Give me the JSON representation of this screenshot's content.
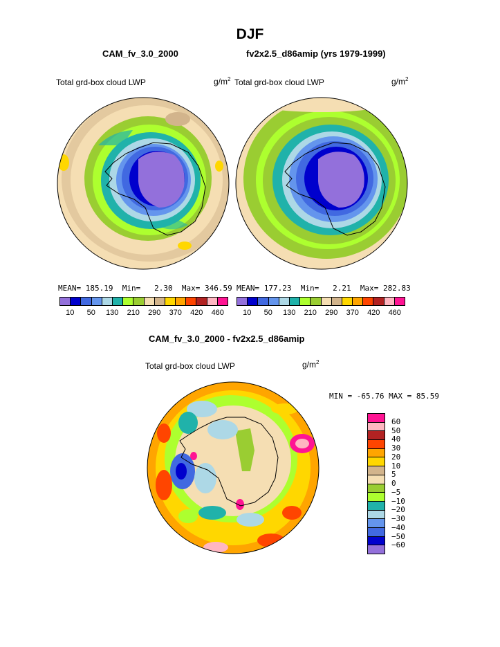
{
  "title": "DJF",
  "panels": {
    "left": {
      "case": "CAM_fv_3.0_2000",
      "variable": "Total grd-box cloud LWP",
      "units": "g/m",
      "units_exp": "2",
      "mean_label": "MEAN=",
      "mean": "185.19",
      "min_label": "Min=",
      "min": "2.30",
      "max_label": "Max=",
      "max": "346.59"
    },
    "right": {
      "case": "fv2x2.5_d86amip (yrs 1979-1999)",
      "variable": "Total grd-box cloud LWP",
      "units": "g/m",
      "units_exp": "2",
      "mean_label": "MEAN=",
      "mean": "177.23",
      "min_label": "Min=",
      "min": "2.21",
      "max_label": "Max=",
      "max": "282.83"
    },
    "diff": {
      "title": "CAM_fv_3.0_2000 - fv2x2.5_d86amip",
      "variable": "Total grd-box cloud LWP",
      "units": "g/m",
      "units_exp": "2",
      "minmax": "MIN = -65.76  MAX =  85.59"
    }
  },
  "chart_data": [
    {
      "type": "heatmap",
      "title": "CAM_fv_3.0_2000",
      "projection": "south polar stereographic",
      "variable": "Total grd-box cloud LWP",
      "units": "g/m2",
      "mean": 185.19,
      "min": 2.3,
      "max": 346.59,
      "colorbar_ticks": [
        "10",
        "50",
        "130",
        "210",
        "290",
        "370",
        "420",
        "460"
      ],
      "colors": [
        "#9370db",
        "#0000cd",
        "#4169e1",
        "#6495ed",
        "#add8e6",
        "#20b2aa",
        "#adff2f",
        "#9acd32",
        "#f5deb3",
        "#d2b48c",
        "#ffd700",
        "#ffa500",
        "#ff4500",
        "#b22222",
        "#ffb6c1",
        "#ff1493"
      ]
    },
    {
      "type": "heatmap",
      "title": "fv2x2.5_d86amip (yrs 1979-1999)",
      "projection": "south polar stereographic",
      "variable": "Total grd-box cloud LWP",
      "units": "g/m2",
      "mean": 177.23,
      "min": 2.21,
      "max": 282.83,
      "colorbar_ticks": [
        "10",
        "50",
        "130",
        "210",
        "290",
        "370",
        "420",
        "460"
      ],
      "colors": [
        "#9370db",
        "#0000cd",
        "#4169e1",
        "#6495ed",
        "#add8e6",
        "#20b2aa",
        "#adff2f",
        "#9acd32",
        "#f5deb3",
        "#d2b48c",
        "#ffd700",
        "#ffa500",
        "#ff4500",
        "#b22222",
        "#ffb6c1",
        "#ff1493"
      ]
    },
    {
      "type": "heatmap",
      "title": "CAM_fv_3.0_2000 - fv2x2.5_d86amip",
      "projection": "south polar stereographic",
      "variable": "Total grd-box cloud LWP",
      "units": "g/m2",
      "min": -65.76,
      "max": 85.59,
      "colorbar_labels": [
        "60",
        "50",
        "40",
        "30",
        "20",
        "10",
        "5",
        "0",
        "−5",
        "−10",
        "−20",
        "−30",
        "−40",
        "−50",
        "−60"
      ],
      "colors": [
        "#ff1493",
        "#ffb6c1",
        "#b22222",
        "#ff4500",
        "#ffa500",
        "#ffd700",
        "#d2b48c",
        "#f5deb3",
        "#9acd32",
        "#adff2f",
        "#20b2aa",
        "#add8e6",
        "#6495ed",
        "#4169e1",
        "#0000cd",
        "#9370db"
      ]
    }
  ]
}
